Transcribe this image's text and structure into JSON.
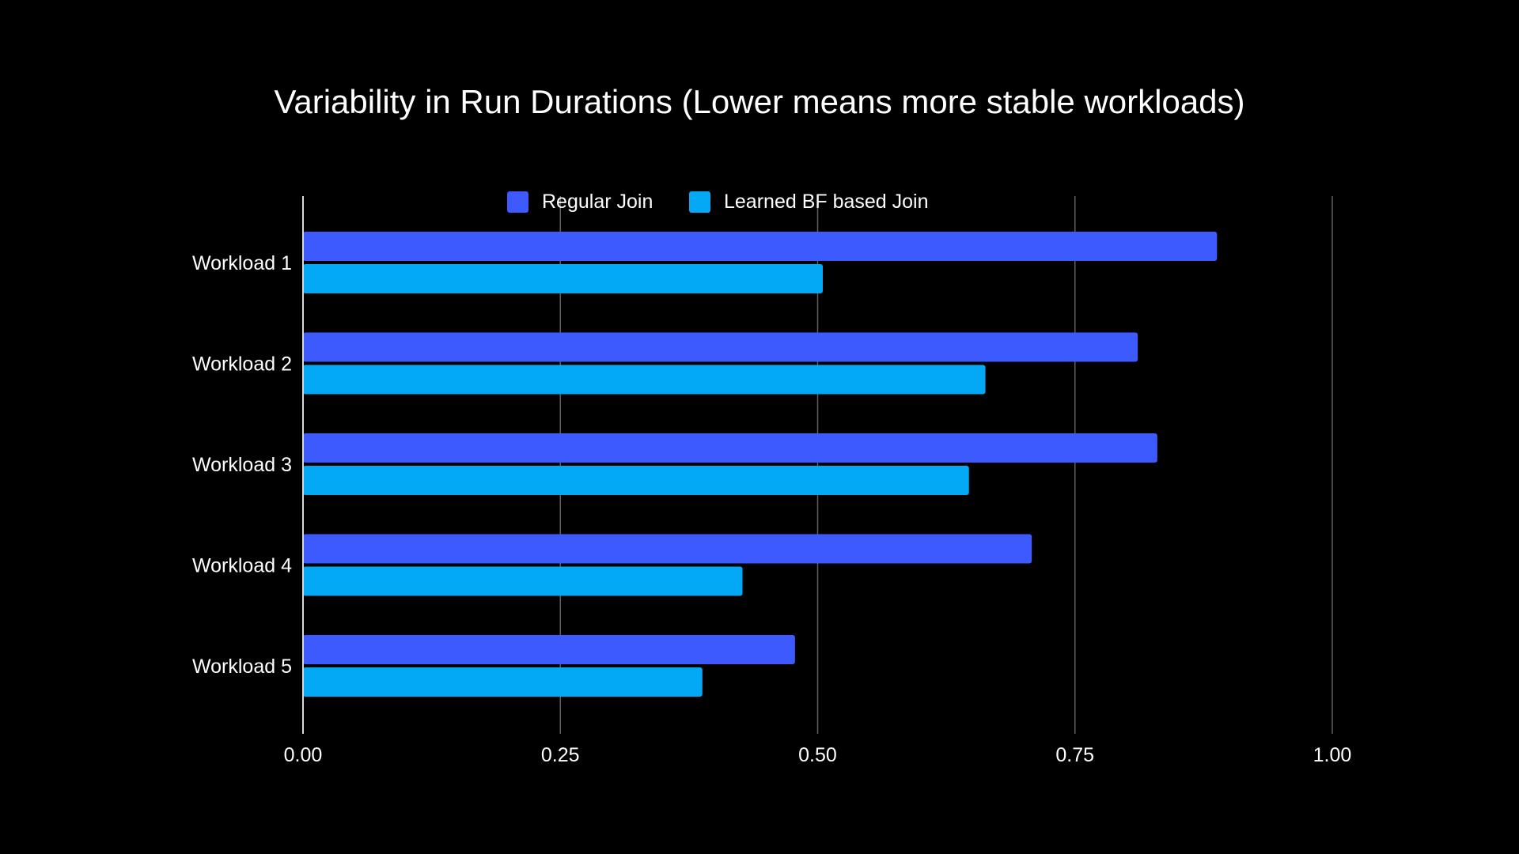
{
  "chart_data": {
    "type": "bar",
    "orientation": "horizontal",
    "title": "Variability in Run Durations (Lower means more stable workloads)",
    "categories": [
      "Workload 1",
      "Workload 2",
      "Workload 3",
      "Workload 4",
      "Workload 5"
    ],
    "series": [
      {
        "name": "Regular Join",
        "color": "#3d5afe",
        "values": [
          0.888,
          0.811,
          0.83,
          0.708,
          0.478
        ]
      },
      {
        "name": "Learned BF based Join",
        "color": "#03a9f4",
        "values": [
          0.505,
          0.663,
          0.647,
          0.427,
          0.388
        ]
      }
    ],
    "xlim": [
      0,
      1
    ],
    "xticks": [
      0,
      0.25,
      0.5,
      0.75,
      1
    ],
    "xtick_labels": [
      "0.00",
      "0.25",
      "0.50",
      "0.75",
      "1.00"
    ],
    "xlabel": "",
    "ylabel": "",
    "grid": "vertical",
    "legend_position": "top",
    "background": "#000000",
    "text_color": "#ffffff",
    "grid_color": "#5f5f5f"
  }
}
